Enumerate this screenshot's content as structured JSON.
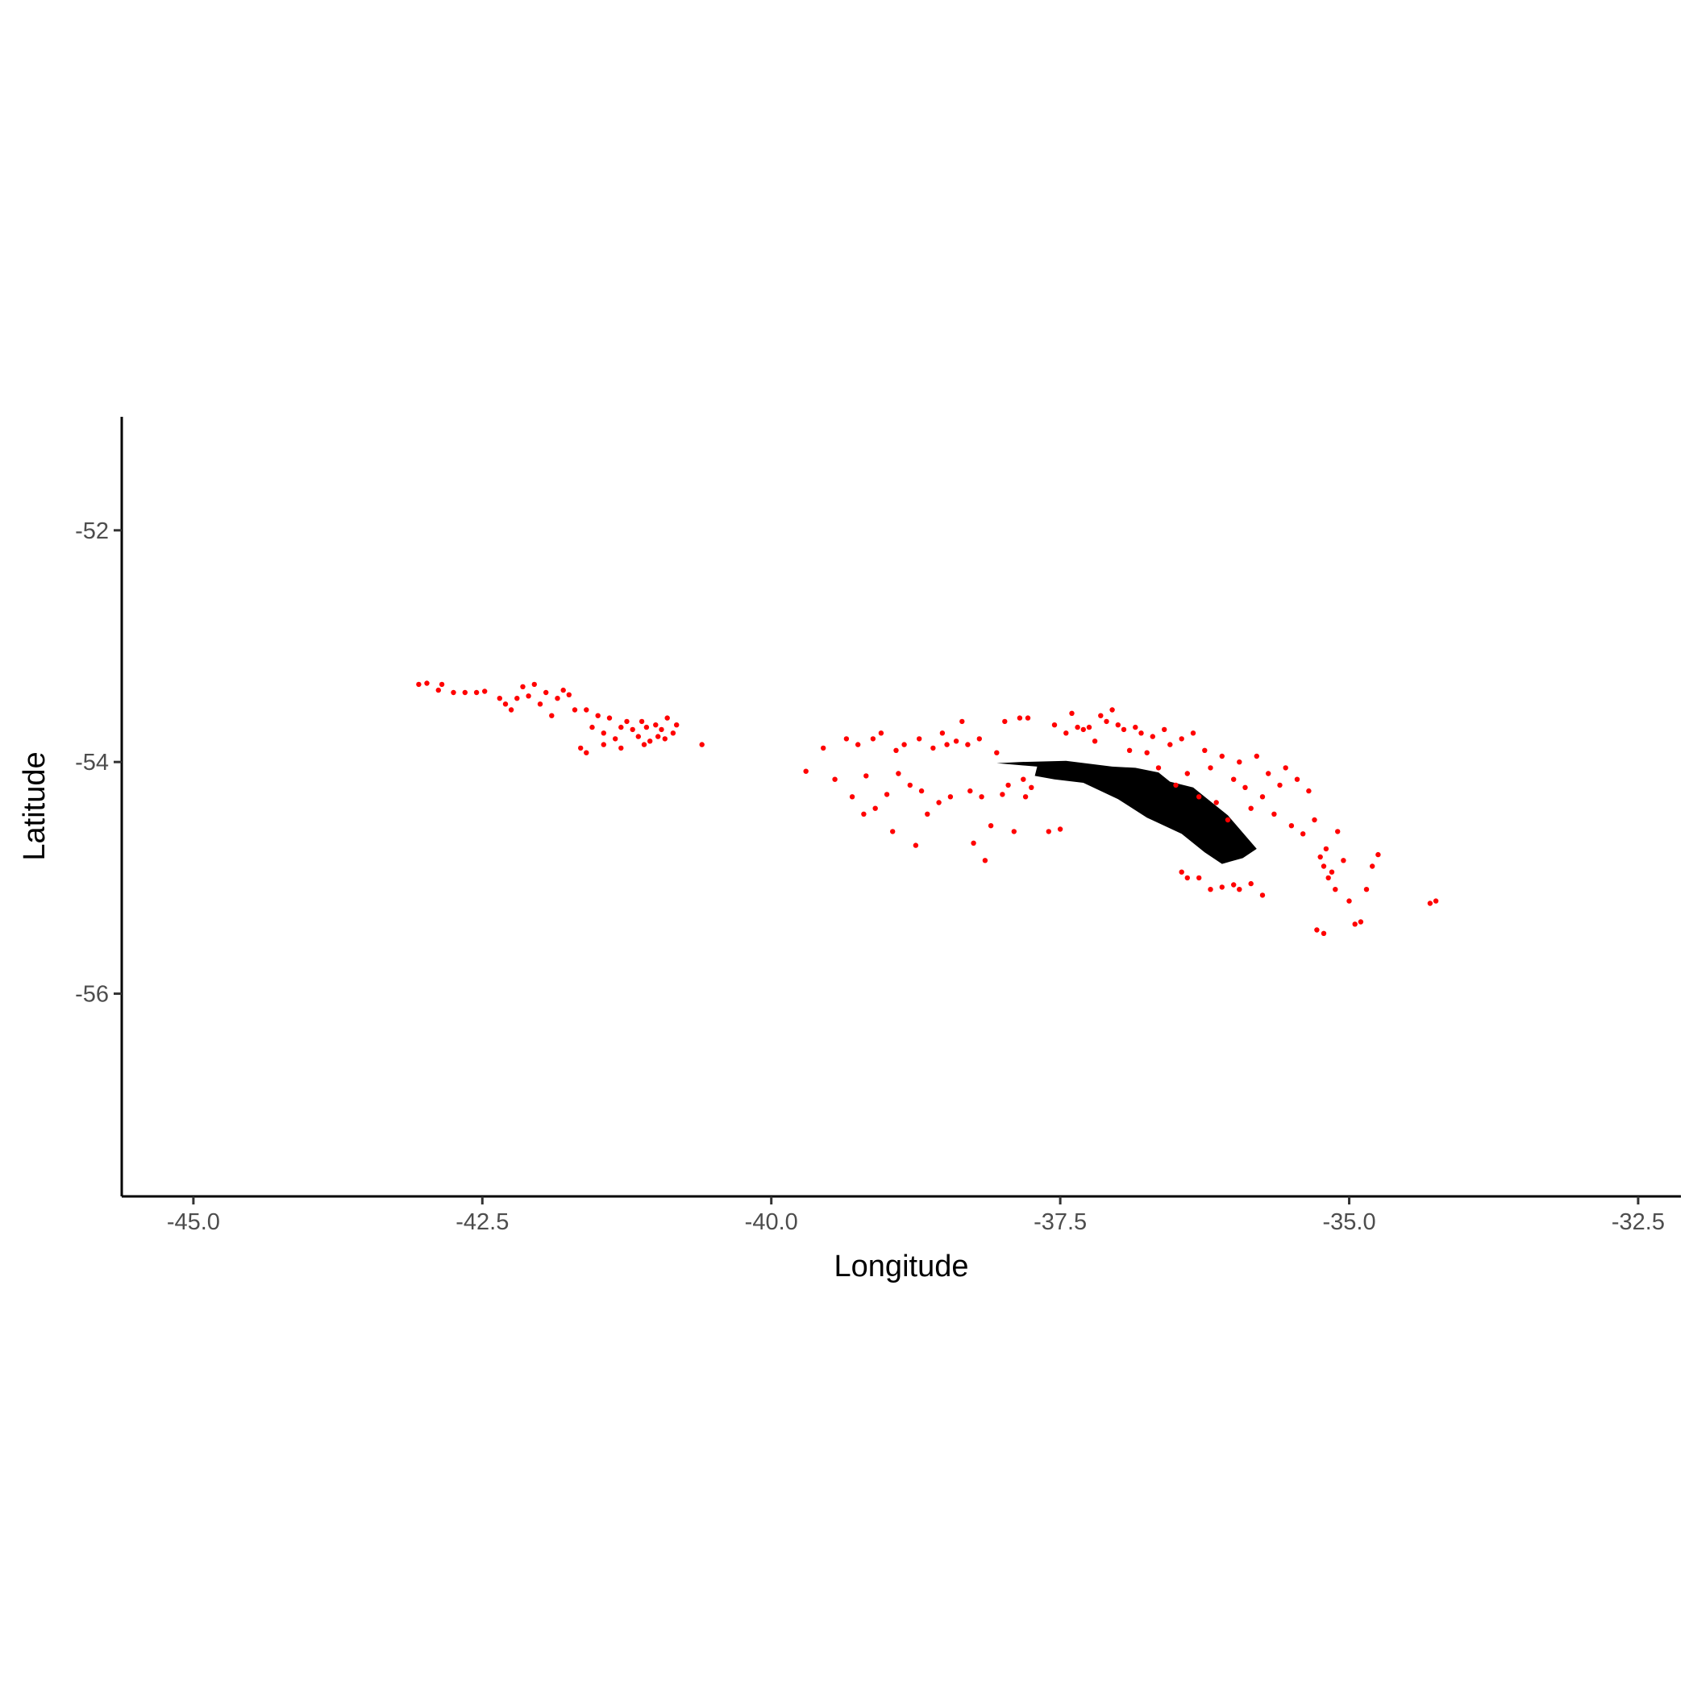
{
  "chart_data": {
    "type": "scatter",
    "xlabel": "Longitude",
    "ylabel": "Latitude",
    "xlim": [
      -45.62,
      -32.13
    ],
    "ylim": [
      -57.75,
      -51.02
    ],
    "x_ticks": [
      "-45.0",
      "-42.5",
      "-40.0",
      "-37.5",
      "-35.0",
      "-32.5"
    ],
    "y_ticks": [
      "-52",
      "-54",
      "-56"
    ],
    "grid": false,
    "legend": "none",
    "colors": {
      "points": "#ff0000",
      "land": "#000000",
      "axis": "#000000"
    },
    "land_polygon": [
      [
        -38.05,
        -54.01
      ],
      [
        -37.85,
        -54.0
      ],
      [
        -37.45,
        -53.99
      ],
      [
        -37.05,
        -54.04
      ],
      [
        -36.85,
        -54.05
      ],
      [
        -36.65,
        -54.09
      ],
      [
        -36.55,
        -54.17
      ],
      [
        -36.35,
        -54.22
      ],
      [
        -36.25,
        -54.3
      ],
      [
        -36.05,
        -54.46
      ],
      [
        -35.8,
        -54.75
      ],
      [
        -35.92,
        -54.83
      ],
      [
        -36.1,
        -54.88
      ],
      [
        -36.25,
        -54.78
      ],
      [
        -36.45,
        -54.62
      ],
      [
        -36.75,
        -54.48
      ],
      [
        -37.0,
        -54.32
      ],
      [
        -37.3,
        -54.18
      ],
      [
        -37.55,
        -54.15
      ],
      [
        -37.72,
        -54.12
      ],
      [
        -37.7,
        -54.04
      ]
    ],
    "points": [
      [
        -43.05,
        -53.33
      ],
      [
        -42.98,
        -53.32
      ],
      [
        -42.85,
        -53.33
      ],
      [
        -42.88,
        -53.38
      ],
      [
        -42.75,
        -53.4
      ],
      [
        -42.65,
        -53.4
      ],
      [
        -42.55,
        -53.4
      ],
      [
        -42.48,
        -53.39
      ],
      [
        -42.35,
        -53.45
      ],
      [
        -42.3,
        -53.5
      ],
      [
        -42.25,
        -53.55
      ],
      [
        -42.2,
        -53.45
      ],
      [
        -42.15,
        -53.35
      ],
      [
        -42.1,
        -53.43
      ],
      [
        -42.05,
        -53.33
      ],
      [
        -42.0,
        -53.5
      ],
      [
        -41.95,
        -53.4
      ],
      [
        -41.9,
        -53.6
      ],
      [
        -41.85,
        -53.45
      ],
      [
        -41.8,
        -53.38
      ],
      [
        -41.75,
        -53.42
      ],
      [
        -41.7,
        -53.55
      ],
      [
        -41.6,
        -53.55
      ],
      [
        -41.55,
        -53.7
      ],
      [
        -41.5,
        -53.6
      ],
      [
        -41.45,
        -53.75
      ],
      [
        -41.4,
        -53.62
      ],
      [
        -41.35,
        -53.8
      ],
      [
        -41.3,
        -53.7
      ],
      [
        -41.25,
        -53.65
      ],
      [
        -41.2,
        -53.72
      ],
      [
        -41.15,
        -53.78
      ],
      [
        -41.12,
        -53.65
      ],
      [
        -41.08,
        -53.7
      ],
      [
        -41.05,
        -53.82
      ],
      [
        -41.0,
        -53.68
      ],
      [
        -40.98,
        -53.78
      ],
      [
        -40.95,
        -53.72
      ],
      [
        -40.92,
        -53.8
      ],
      [
        -40.9,
        -53.62
      ],
      [
        -40.85,
        -53.75
      ],
      [
        -40.82,
        -53.68
      ],
      [
        -41.1,
        -53.85
      ],
      [
        -41.3,
        -53.88
      ],
      [
        -41.65,
        -53.88
      ],
      [
        -41.6,
        -53.92
      ],
      [
        -41.45,
        -53.85
      ],
      [
        -40.6,
        -53.85
      ],
      [
        -39.7,
        -54.08
      ],
      [
        -39.55,
        -53.88
      ],
      [
        -39.45,
        -54.15
      ],
      [
        -39.35,
        -53.8
      ],
      [
        -39.3,
        -54.3
      ],
      [
        -39.25,
        -53.85
      ],
      [
        -39.2,
        -54.45
      ],
      [
        -39.18,
        -54.12
      ],
      [
        -39.12,
        -53.8
      ],
      [
        -39.1,
        -54.4
      ],
      [
        -39.05,
        -53.75
      ],
      [
        -39.0,
        -54.28
      ],
      [
        -38.95,
        -54.6
      ],
      [
        -38.92,
        -53.9
      ],
      [
        -38.9,
        -54.1
      ],
      [
        -38.85,
        -53.85
      ],
      [
        -38.8,
        -54.2
      ],
      [
        -38.75,
        -54.72
      ],
      [
        -38.72,
        -53.8
      ],
      [
        -38.7,
        -54.25
      ],
      [
        -38.65,
        -54.45
      ],
      [
        -38.6,
        -53.88
      ],
      [
        -38.55,
        -54.35
      ],
      [
        -38.52,
        -53.75
      ],
      [
        -38.48,
        -53.85
      ],
      [
        -38.45,
        -54.3
      ],
      [
        -38.4,
        -53.82
      ],
      [
        -38.35,
        -53.65
      ],
      [
        -38.3,
        -53.85
      ],
      [
        -38.28,
        -54.25
      ],
      [
        -38.25,
        -54.7
      ],
      [
        -38.2,
        -53.8
      ],
      [
        -38.18,
        -54.3
      ],
      [
        -38.15,
        -54.85
      ],
      [
        -38.1,
        -54.55
      ],
      [
        -38.05,
        -53.92
      ],
      [
        -37.98,
        -53.65
      ],
      [
        -37.95,
        -54.2
      ],
      [
        -37.9,
        -54.6
      ],
      [
        -37.85,
        -53.62
      ],
      [
        -37.82,
        -54.15
      ],
      [
        -37.8,
        -54.3
      ],
      [
        -37.78,
        -53.62
      ],
      [
        -37.75,
        -54.22
      ],
      [
        -38.0,
        -54.28
      ],
      [
        -37.6,
        -54.6
      ],
      [
        -37.55,
        -53.68
      ],
      [
        -37.5,
        -54.58
      ],
      [
        -37.45,
        -53.75
      ],
      [
        -37.4,
        -53.58
      ],
      [
        -37.35,
        -53.7
      ],
      [
        -37.3,
        -53.72
      ],
      [
        -37.25,
        -53.7
      ],
      [
        -37.2,
        -53.82
      ],
      [
        -37.15,
        -53.6
      ],
      [
        -37.1,
        -53.65
      ],
      [
        -37.05,
        -53.55
      ],
      [
        -37.0,
        -53.68
      ],
      [
        -36.95,
        -53.72
      ],
      [
        -36.9,
        -53.9
      ],
      [
        -36.85,
        -53.7
      ],
      [
        -36.8,
        -53.75
      ],
      [
        -36.75,
        -53.92
      ],
      [
        -36.7,
        -53.78
      ],
      [
        -36.65,
        -54.05
      ],
      [
        -36.6,
        -53.72
      ],
      [
        -36.55,
        -53.85
      ],
      [
        -36.5,
        -54.2
      ],
      [
        -36.45,
        -53.8
      ],
      [
        -36.4,
        -54.1
      ],
      [
        -36.35,
        -53.75
      ],
      [
        -36.3,
        -54.3
      ],
      [
        -36.25,
        -53.9
      ],
      [
        -36.2,
        -54.05
      ],
      [
        -36.15,
        -54.35
      ],
      [
        -36.1,
        -53.95
      ],
      [
        -36.05,
        -54.5
      ],
      [
        -36.0,
        -54.15
      ],
      [
        -35.95,
        -54.0
      ],
      [
        -35.9,
        -54.22
      ],
      [
        -35.85,
        -54.4
      ],
      [
        -35.8,
        -53.95
      ],
      [
        -35.75,
        -54.3
      ],
      [
        -35.7,
        -54.1
      ],
      [
        -35.65,
        -54.45
      ],
      [
        -35.6,
        -54.2
      ],
      [
        -35.55,
        -54.05
      ],
      [
        -35.5,
        -54.55
      ],
      [
        -35.45,
        -54.15
      ],
      [
        -35.4,
        -54.62
      ],
      [
        -35.35,
        -54.25
      ],
      [
        -35.3,
        -54.5
      ],
      [
        -35.25,
        -54.82
      ],
      [
        -35.22,
        -54.9
      ],
      [
        -35.2,
        -54.75
      ],
      [
        -35.18,
        -55.0
      ],
      [
        -35.15,
        -54.95
      ],
      [
        -35.12,
        -55.1
      ],
      [
        -35.1,
        -54.6
      ],
      [
        -35.05,
        -54.85
      ],
      [
        -35.0,
        -55.2
      ],
      [
        -34.95,
        -55.4
      ],
      [
        -34.9,
        -55.38
      ],
      [
        -34.85,
        -55.1
      ],
      [
        -34.8,
        -54.9
      ],
      [
        -34.75,
        -54.8
      ],
      [
        -34.25,
        -55.2
      ],
      [
        -34.3,
        -55.22
      ],
      [
        -35.28,
        -55.45
      ],
      [
        -35.22,
        -55.48
      ],
      [
        -36.4,
        -55.0
      ],
      [
        -36.3,
        -55.0
      ],
      [
        -36.2,
        -55.1
      ],
      [
        -36.1,
        -55.08
      ],
      [
        -36.0,
        -55.06
      ],
      [
        -35.95,
        -55.1
      ],
      [
        -35.85,
        -55.05
      ],
      [
        -35.75,
        -55.15
      ],
      [
        -36.45,
        -54.95
      ]
    ]
  }
}
